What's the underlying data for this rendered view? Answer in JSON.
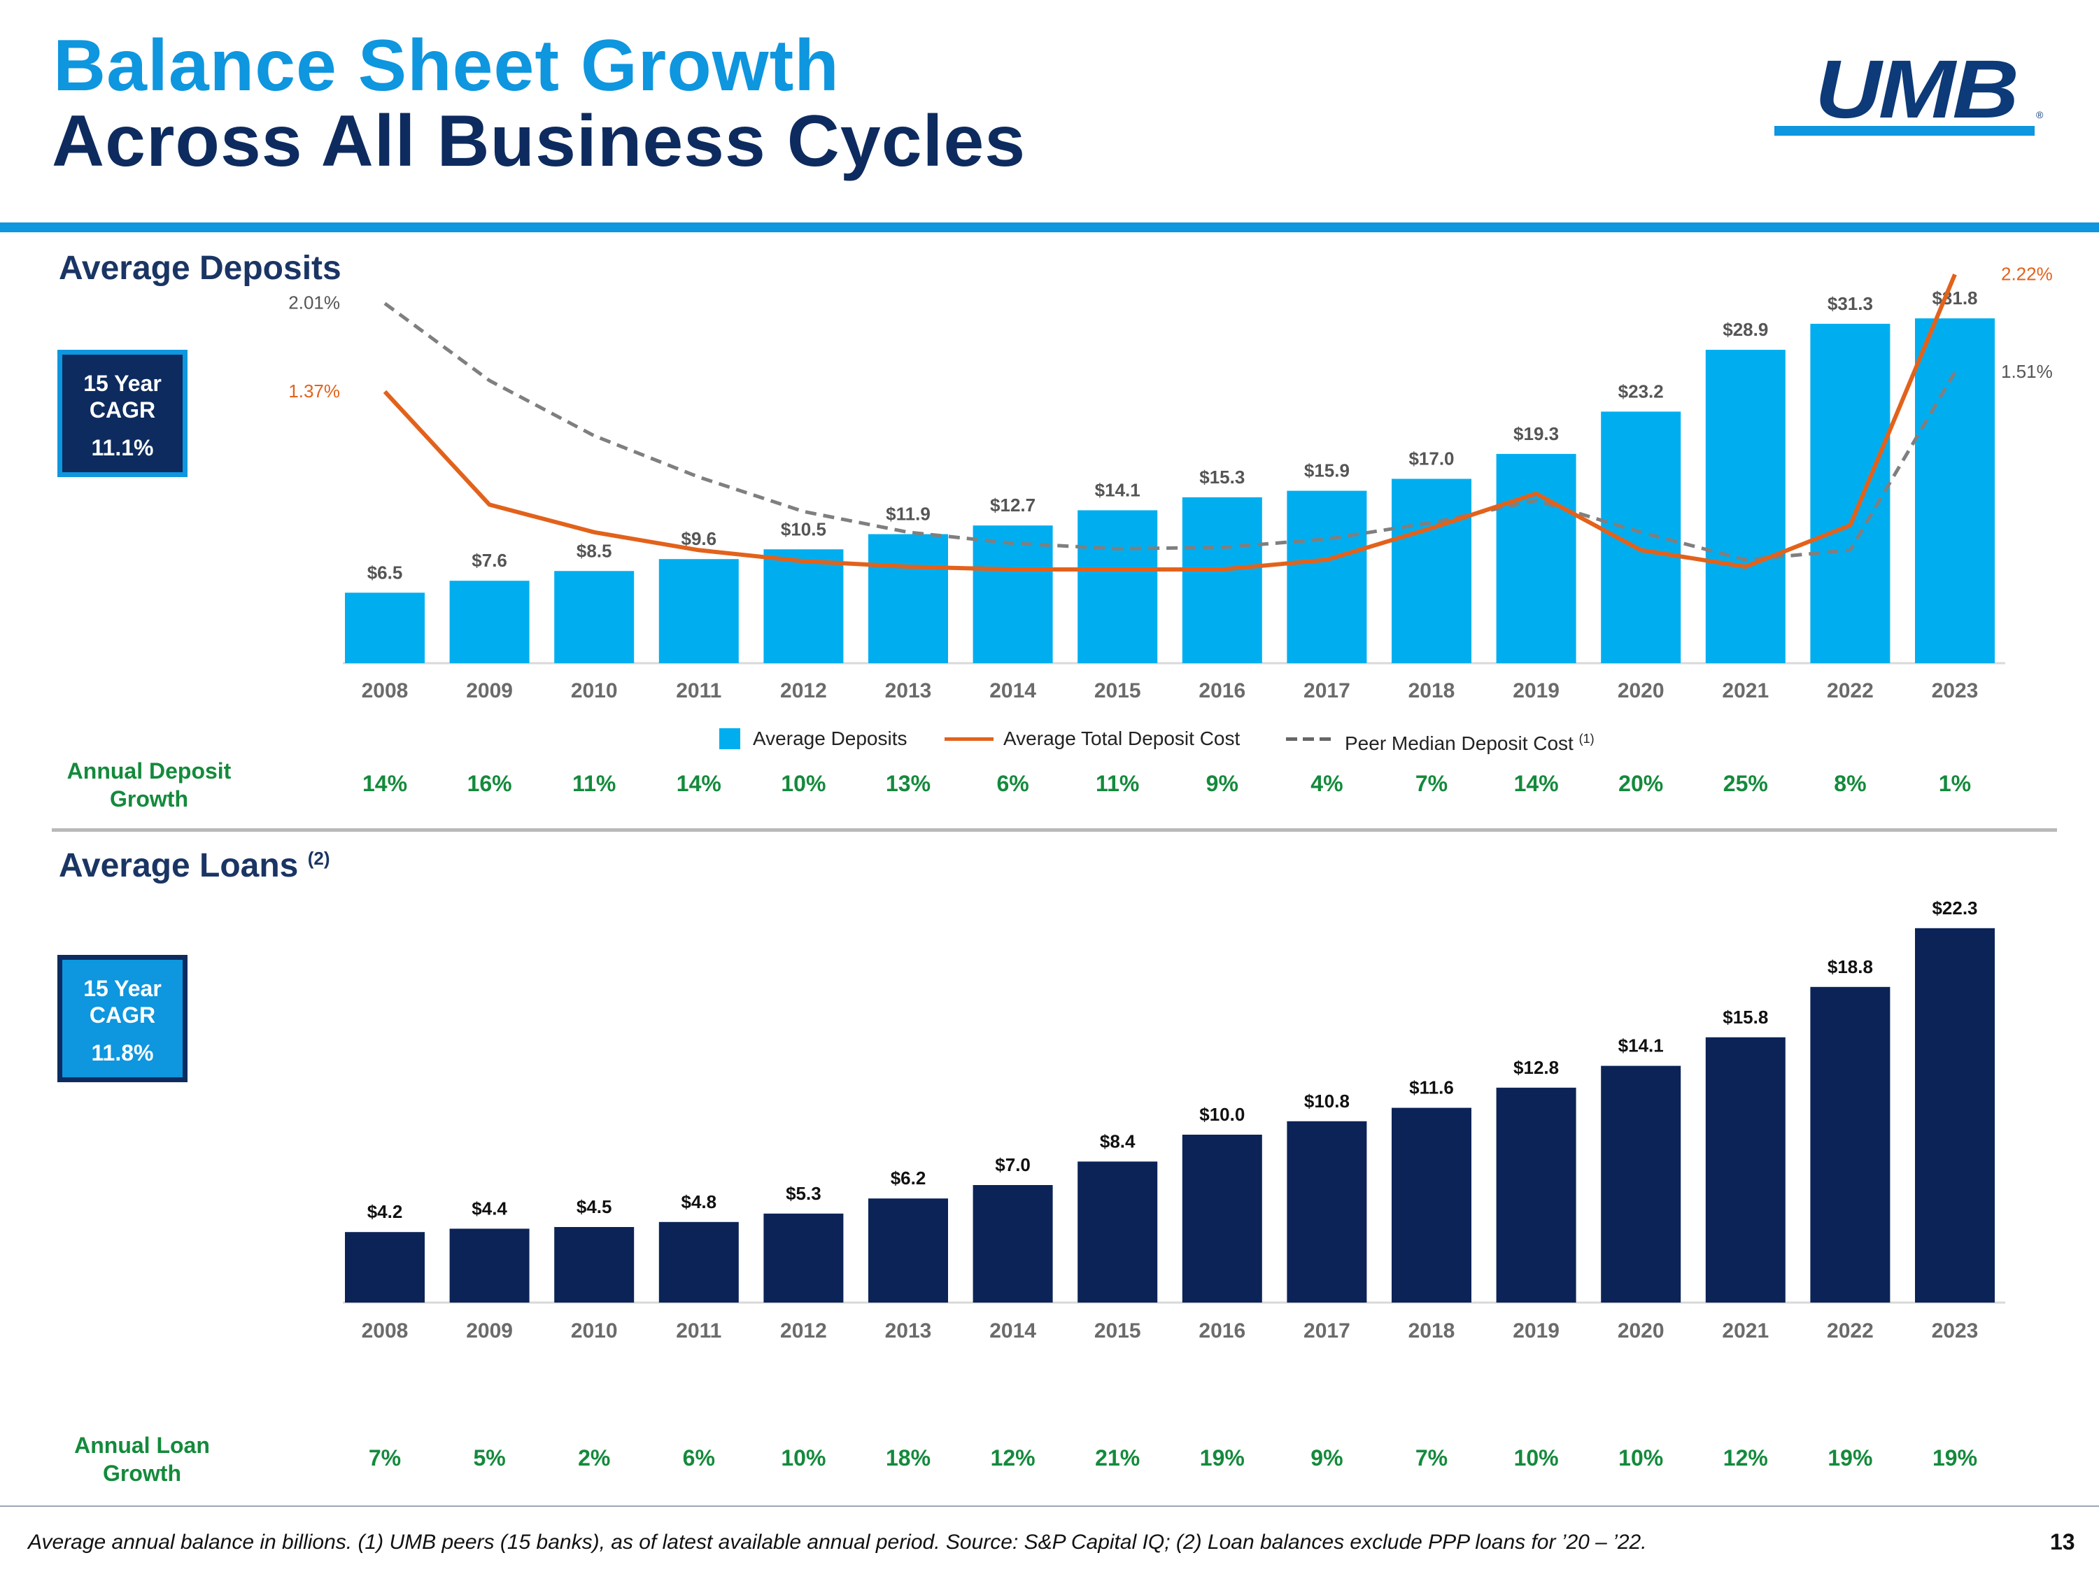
{
  "header": {
    "title_line1": "Balance Sheet Growth",
    "title_line2": "Across All Business Cycles",
    "logo_text": "UMB",
    "logo_mark": "®"
  },
  "deposits_section": {
    "title": "Average Deposits",
    "cagr_line1": "15 Year",
    "cagr_line2": "CAGR",
    "cagr_value": "11.1%",
    "growth_label_line1": "Annual Deposit",
    "growth_label_line2": "Growth",
    "growth": [
      "14%",
      "16%",
      "11%",
      "14%",
      "10%",
      "13%",
      "6%",
      "11%",
      "9%",
      "4%",
      "7%",
      "14%",
      "20%",
      "25%",
      "8%",
      "1%"
    ],
    "legend": {
      "bars": "Average Deposits",
      "cost_line": "Average Total Deposit Cost",
      "peer_line": "Peer Median Deposit Cost",
      "peer_note": "(1)"
    }
  },
  "loans_section": {
    "title": "Average Loans",
    "title_note": "(2)",
    "cagr_line1": "15 Year",
    "cagr_line2": "CAGR",
    "cagr_value": "11.8%",
    "growth_label_line1": "Annual Loan",
    "growth_label_line2": "Growth",
    "growth": [
      "7%",
      "5%",
      "2%",
      "6%",
      "10%",
      "18%",
      "12%",
      "21%",
      "19%",
      "9%",
      "7%",
      "10%",
      "10%",
      "12%",
      "19%",
      "19%"
    ]
  },
  "chart_data": [
    {
      "type": "bar",
      "title": "Average Deposits",
      "categories": [
        "2008",
        "2009",
        "2010",
        "2011",
        "2012",
        "2013",
        "2014",
        "2015",
        "2016",
        "2017",
        "2018",
        "2019",
        "2020",
        "2021",
        "2022",
        "2023"
      ],
      "series": [
        {
          "name": "Average Deposits",
          "values": [
            6.5,
            7.6,
            8.5,
            9.6,
            10.5,
            11.9,
            12.7,
            14.1,
            15.3,
            15.9,
            17.0,
            19.3,
            23.2,
            28.9,
            31.3,
            31.8
          ],
          "labels": [
            "$6.5",
            "$7.6",
            "$8.5",
            "$9.6",
            "$10.5",
            "$11.9",
            "$12.7",
            "$14.1",
            "$15.3",
            "$15.9",
            "$17.0",
            "$19.3",
            "$23.2",
            "$28.9",
            "$31.3",
            "$31.8"
          ],
          "color": "#00aeef"
        },
        {
          "name": "Average Total Deposit Cost",
          "type": "line",
          "unit": "%",
          "values": [
            1.37,
            0.55,
            0.35,
            0.22,
            0.14,
            0.1,
            0.08,
            0.08,
            0.08,
            0.15,
            0.38,
            0.63,
            0.22,
            0.1,
            0.4,
            2.22
          ],
          "start_label": "1.37%",
          "end_label": "2.22%",
          "color": "#e2621b"
        },
        {
          "name": "Peer Median Deposit Cost",
          "type": "line",
          "dashed": true,
          "unit": "%",
          "values": [
            2.01,
            1.45,
            1.05,
            0.75,
            0.5,
            0.35,
            0.27,
            0.23,
            0.24,
            0.3,
            0.42,
            0.58,
            0.35,
            0.15,
            0.22,
            1.51
          ],
          "start_label": "2.01%",
          "end_label": "1.51%",
          "color": "#7f7f7f"
        }
      ],
      "xlabel": "",
      "ylabel": "",
      "ylim": [
        0,
        35
      ],
      "y2lim": [
        -0.6,
        2.8
      ]
    },
    {
      "type": "bar",
      "title": "Average Loans",
      "categories": [
        "2008",
        "2009",
        "2010",
        "2011",
        "2012",
        "2013",
        "2014",
        "2015",
        "2016",
        "2017",
        "2018",
        "2019",
        "2020",
        "2021",
        "2022",
        "2023"
      ],
      "series": [
        {
          "name": "Average Loans",
          "values": [
            4.2,
            4.4,
            4.5,
            4.8,
            5.3,
            6.2,
            7.0,
            8.4,
            10.0,
            10.8,
            11.6,
            12.8,
            14.1,
            15.8,
            18.8,
            22.3
          ],
          "labels": [
            "$4.2",
            "$4.4",
            "$4.5",
            "$4.8",
            "$5.3",
            "$6.2",
            "$7.0",
            "$8.4",
            "$10.0",
            "$10.8",
            "$11.6",
            "$12.8",
            "$14.1",
            "$15.8",
            "$18.8",
            "$22.3"
          ],
          "color": "#0c2357"
        }
      ],
      "xlabel": "",
      "ylabel": "",
      "ylim": [
        0,
        24
      ]
    }
  ],
  "footer": {
    "footnote": "Average annual balance in billions. (1) UMB peers (15 banks), as of latest available annual period. Source: S&P Capital IQ; (2) Loan balances exclude PPP loans for ’20 – ’22.",
    "page_number": "13"
  }
}
